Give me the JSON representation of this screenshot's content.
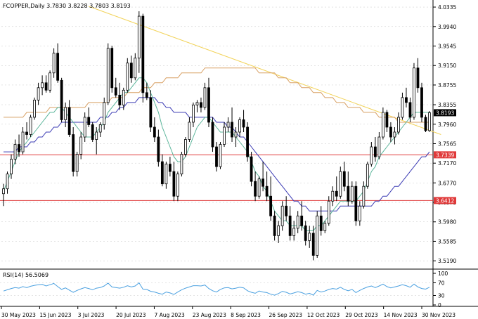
{
  "symbol_header": "FCOPPER,Daily  3.7830 3.8228 3.7803 3.8193",
  "rsi_label": "RSI(14) 56.5069",
  "colors": {
    "background": "#ffffff",
    "grid": "#c8c8c8",
    "candle": "#000000",
    "ma_fast": "#5ab59a",
    "ma_mid": "#3b3bb4",
    "ma_slow": "#d8a064",
    "trendline": "#f2d35a",
    "support": "#e03a3a",
    "rsi": "#4aa0e0"
  },
  "chart_data": {
    "type": "candlestick",
    "title": "FCOPPER,Daily",
    "ohlc_last": {
      "open": 3.783,
      "high": 3.8228,
      "low": 3.7803,
      "close": 3.8193
    },
    "price_axis": {
      "ticks": [
        "4.0335",
        "3.9940",
        "3.9545",
        "3.9150",
        "3.8755",
        "3.8355",
        "3.7960",
        "3.7565",
        "3.7170",
        "3.6770",
        "3.6375",
        "3.5980",
        "3.5585",
        "3.5190"
      ],
      "ylim": [
        3.505,
        4.045
      ]
    },
    "price_labels": [
      {
        "value": 3.8193,
        "text": "3.8193",
        "style": "current"
      },
      {
        "value": 3.7339,
        "text": "3.7339",
        "style": "support"
      },
      {
        "value": 3.6412,
        "text": "3.6412",
        "style": "support"
      }
    ],
    "horizontal_lines": [
      3.7339,
      3.6412
    ],
    "date_labels": [
      "30 May 2023",
      "15 Jun 2023",
      "3 Jul 2023",
      "20 Jul 2023",
      "7 Aug 2023",
      "23 Aug 2023",
      "8 Sep 2023",
      "26 Sep 2023",
      "12 Oct 2023",
      "29 Oct 2023",
      "14 Nov 2023",
      "30 Nov 2023"
    ],
    "trendline": {
      "start": [
        "2023-07-06",
        4.035
      ],
      "end": [
        "2023-12-06",
        3.775
      ]
    },
    "candles": [
      [
        3.655,
        3.675,
        3.63,
        3.665
      ],
      [
        3.665,
        3.7,
        3.655,
        3.695
      ],
      [
        3.695,
        3.735,
        3.685,
        3.725
      ],
      [
        3.725,
        3.765,
        3.715,
        3.755
      ],
      [
        3.755,
        3.775,
        3.73,
        3.74
      ],
      [
        3.74,
        3.79,
        3.735,
        3.78
      ],
      [
        3.78,
        3.8,
        3.765,
        3.775
      ],
      [
        3.775,
        3.815,
        3.77,
        3.81
      ],
      [
        3.81,
        3.85,
        3.805,
        3.845
      ],
      [
        3.845,
        3.88,
        3.835,
        3.87
      ],
      [
        3.87,
        3.895,
        3.855,
        3.88
      ],
      [
        3.88,
        3.895,
        3.86,
        3.865
      ],
      [
        3.865,
        3.905,
        3.86,
        3.9
      ],
      [
        3.9,
        3.95,
        3.89,
        3.94
      ],
      [
        3.94,
        3.96,
        3.88,
        3.885
      ],
      [
        3.885,
        3.89,
        3.8,
        3.805
      ],
      [
        3.805,
        3.84,
        3.79,
        3.83
      ],
      [
        3.83,
        3.845,
        3.77,
        3.775
      ],
      [
        3.775,
        3.79,
        3.69,
        3.7
      ],
      [
        3.7,
        3.74,
        3.69,
        3.735
      ],
      [
        3.735,
        3.78,
        3.725,
        3.77
      ],
      [
        3.77,
        3.82,
        3.76,
        3.81
      ],
      [
        3.81,
        3.83,
        3.79,
        3.795
      ],
      [
        3.795,
        3.8,
        3.76,
        3.765
      ],
      [
        3.765,
        3.79,
        3.735,
        3.78
      ],
      [
        3.78,
        3.8,
        3.77,
        3.795
      ],
      [
        3.795,
        3.85,
        3.785,
        3.84
      ],
      [
        3.84,
        3.96,
        3.835,
        3.95
      ],
      [
        3.95,
        3.955,
        3.86,
        3.87
      ],
      [
        3.87,
        3.89,
        3.85,
        3.855
      ],
      [
        3.855,
        3.88,
        3.825,
        3.835
      ],
      [
        3.835,
        3.87,
        3.825,
        3.865
      ],
      [
        3.865,
        3.93,
        3.86,
        3.92
      ],
      [
        3.92,
        3.935,
        3.88,
        3.89
      ],
      [
        3.89,
        3.94,
        3.885,
        3.93
      ],
      [
        3.93,
        4.025,
        3.9,
        4.015
      ],
      [
        4.015,
        4.02,
        3.84,
        3.86
      ],
      [
        3.86,
        3.88,
        3.845,
        3.85
      ],
      [
        3.85,
        3.865,
        3.78,
        3.79
      ],
      [
        3.79,
        3.81,
        3.76,
        3.77
      ],
      [
        3.77,
        3.785,
        3.71,
        3.72
      ],
      [
        3.72,
        3.735,
        3.67,
        3.675
      ],
      [
        3.675,
        3.72,
        3.665,
        3.715
      ],
      [
        3.715,
        3.73,
        3.69,
        3.7
      ],
      [
        3.7,
        3.72,
        3.64,
        3.65
      ],
      [
        3.65,
        3.7,
        3.64,
        3.695
      ],
      [
        3.695,
        3.74,
        3.69,
        3.735
      ],
      [
        3.735,
        3.77,
        3.73,
        3.765
      ],
      [
        3.765,
        3.81,
        3.76,
        3.8
      ],
      [
        3.8,
        3.84,
        3.79,
        3.835
      ],
      [
        3.835,
        3.845,
        3.82,
        3.84
      ],
      [
        3.84,
        3.85,
        3.82,
        3.83
      ],
      [
        3.83,
        3.88,
        3.825,
        3.87
      ],
      [
        3.87,
        3.89,
        3.79,
        3.8
      ],
      [
        3.8,
        3.81,
        3.74,
        3.75
      ],
      [
        3.75,
        3.76,
        3.7,
        3.71
      ],
      [
        3.71,
        3.76,
        3.705,
        3.755
      ],
      [
        3.755,
        3.8,
        3.75,
        3.79
      ],
      [
        3.79,
        3.81,
        3.78,
        3.8
      ],
      [
        3.8,
        3.83,
        3.76,
        3.77
      ],
      [
        3.77,
        3.79,
        3.75,
        3.78
      ],
      [
        3.78,
        3.81,
        3.77,
        3.805
      ],
      [
        3.805,
        3.825,
        3.78,
        3.79
      ],
      [
        3.79,
        3.8,
        3.72,
        3.73
      ],
      [
        3.73,
        3.74,
        3.67,
        3.68
      ],
      [
        3.68,
        3.7,
        3.64,
        3.65
      ],
      [
        3.65,
        3.69,
        3.645,
        3.685
      ],
      [
        3.685,
        3.72,
        3.66,
        3.67
      ],
      [
        3.67,
        3.7,
        3.64,
        3.65
      ],
      [
        3.65,
        3.69,
        3.6,
        3.61
      ],
      [
        3.61,
        3.62,
        3.56,
        3.57
      ],
      [
        3.57,
        3.6,
        3.555,
        3.59
      ],
      [
        3.59,
        3.64,
        3.58,
        3.63
      ],
      [
        3.63,
        3.65,
        3.6,
        3.61
      ],
      [
        3.61,
        3.63,
        3.56,
        3.57
      ],
      [
        3.57,
        3.6,
        3.56,
        3.585
      ],
      [
        3.585,
        3.62,
        3.575,
        3.61
      ],
      [
        3.61,
        3.64,
        3.58,
        3.59
      ],
      [
        3.59,
        3.6,
        3.55,
        3.56
      ],
      [
        3.56,
        3.59,
        3.545,
        3.575
      ],
      [
        3.575,
        3.59,
        3.52,
        3.53
      ],
      [
        3.53,
        3.62,
        3.525,
        3.61
      ],
      [
        3.61,
        3.63,
        3.57,
        3.58
      ],
      [
        3.58,
        3.6,
        3.575,
        3.595
      ],
      [
        3.595,
        3.65,
        3.59,
        3.64
      ],
      [
        3.64,
        3.67,
        3.63,
        3.66
      ],
      [
        3.66,
        3.69,
        3.64,
        3.65
      ],
      [
        3.65,
        3.71,
        3.645,
        3.7
      ],
      [
        3.7,
        3.72,
        3.66,
        3.67
      ],
      [
        3.67,
        3.7,
        3.63,
        3.64
      ],
      [
        3.64,
        3.68,
        3.635,
        3.67
      ],
      [
        3.67,
        3.68,
        3.59,
        3.6
      ],
      [
        3.6,
        3.64,
        3.59,
        3.63
      ],
      [
        3.63,
        3.68,
        3.625,
        3.67
      ],
      [
        3.67,
        3.72,
        3.665,
        3.715
      ],
      [
        3.715,
        3.76,
        3.71,
        3.75
      ],
      [
        3.75,
        3.77,
        3.72,
        3.73
      ],
      [
        3.73,
        3.78,
        3.725,
        3.77
      ],
      [
        3.77,
        3.83,
        3.765,
        3.82
      ],
      [
        3.82,
        3.825,
        3.78,
        3.79
      ],
      [
        3.79,
        3.8,
        3.76,
        3.77
      ],
      [
        3.77,
        3.79,
        3.755,
        3.78
      ],
      [
        3.78,
        3.82,
        3.775,
        3.81
      ],
      [
        3.81,
        3.86,
        3.805,
        3.85
      ],
      [
        3.85,
        3.87,
        3.83,
        3.84
      ],
      [
        3.84,
        3.85,
        3.8,
        3.81
      ],
      [
        3.81,
        3.92,
        3.805,
        3.91
      ],
      [
        3.91,
        3.93,
        3.86,
        3.87
      ],
      [
        3.87,
        3.88,
        3.8,
        3.81
      ],
      [
        3.81,
        3.815,
        3.78,
        3.783
      ],
      [
        3.783,
        3.8228,
        3.7803,
        3.8193
      ]
    ],
    "ma_fast": [
      3.66,
      3.68,
      3.7,
      3.72,
      3.74,
      3.75,
      3.76,
      3.77,
      3.78,
      3.79,
      3.8,
      3.81,
      3.82,
      3.82,
      3.83,
      3.83,
      3.82,
      3.81,
      3.8,
      3.79,
      3.78,
      3.77,
      3.77,
      3.77,
      3.78,
      3.79,
      3.8,
      3.82,
      3.83,
      3.84,
      3.85,
      3.86,
      3.86,
      3.87,
      3.88,
      3.89,
      3.89,
      3.88,
      3.86,
      3.84,
      3.82,
      3.79,
      3.77,
      3.75,
      3.73,
      3.72,
      3.72,
      3.73,
      3.75,
      3.77,
      3.79,
      3.8,
      3.81,
      3.81,
      3.8,
      3.79,
      3.78,
      3.78,
      3.78,
      3.78,
      3.77,
      3.76,
      3.75,
      3.74,
      3.72,
      3.7,
      3.69,
      3.67,
      3.66,
      3.64,
      3.62,
      3.61,
      3.6,
      3.6,
      3.59,
      3.59,
      3.59,
      3.59,
      3.58,
      3.58,
      3.58,
      3.59,
      3.59,
      3.6,
      3.61,
      3.62,
      3.63,
      3.64,
      3.64,
      3.64,
      3.64,
      3.64,
      3.65,
      3.66,
      3.68,
      3.7,
      3.71,
      3.73,
      3.74,
      3.75,
      3.76,
      3.77,
      3.78,
      3.79,
      3.8,
      3.81,
      3.82,
      3.82,
      3.82,
      3.82,
      3.82
    ],
    "ma_mid": [
      3.74,
      3.74,
      3.74,
      3.74,
      3.75,
      3.75,
      3.75,
      3.76,
      3.76,
      3.77,
      3.77,
      3.78,
      3.78,
      3.79,
      3.79,
      3.8,
      3.8,
      3.8,
      3.8,
      3.8,
      3.8,
      3.8,
      3.8,
      3.8,
      3.8,
      3.81,
      3.81,
      3.81,
      3.82,
      3.82,
      3.83,
      3.83,
      3.84,
      3.84,
      3.84,
      3.85,
      3.85,
      3.85,
      3.85,
      3.85,
      3.84,
      3.84,
      3.83,
      3.83,
      3.82,
      3.82,
      3.82,
      3.82,
      3.81,
      3.81,
      3.81,
      3.81,
      3.81,
      3.81,
      3.81,
      3.8,
      3.8,
      3.8,
      3.79,
      3.79,
      3.78,
      3.77,
      3.77,
      3.76,
      3.75,
      3.74,
      3.73,
      3.72,
      3.71,
      3.7,
      3.69,
      3.68,
      3.67,
      3.66,
      3.65,
      3.64,
      3.64,
      3.63,
      3.63,
      3.62,
      3.62,
      3.62,
      3.62,
      3.62,
      3.62,
      3.62,
      3.62,
      3.63,
      3.63,
      3.63,
      3.63,
      3.63,
      3.63,
      3.63,
      3.63,
      3.63,
      3.64,
      3.64,
      3.65,
      3.65,
      3.66,
      3.67,
      3.67,
      3.68,
      3.69,
      3.7,
      3.71,
      3.72,
      3.73,
      3.73,
      3.74
    ],
    "ma_slow": [
      3.81,
      3.81,
      3.81,
      3.81,
      3.81,
      3.81,
      3.82,
      3.82,
      3.82,
      3.82,
      3.82,
      3.82,
      3.83,
      3.83,
      3.83,
      3.83,
      3.83,
      3.83,
      3.83,
      3.83,
      3.83,
      3.83,
      3.84,
      3.84,
      3.84,
      3.84,
      3.84,
      3.84,
      3.85,
      3.85,
      3.85,
      3.85,
      3.86,
      3.86,
      3.86,
      3.86,
      3.87,
      3.87,
      3.87,
      3.88,
      3.88,
      3.88,
      3.89,
      3.89,
      3.89,
      3.89,
      3.9,
      3.9,
      3.9,
      3.9,
      3.9,
      3.9,
      3.91,
      3.91,
      3.91,
      3.91,
      3.91,
      3.91,
      3.91,
      3.91,
      3.91,
      3.91,
      3.91,
      3.91,
      3.91,
      3.91,
      3.9,
      3.9,
      3.9,
      3.9,
      3.9,
      3.89,
      3.89,
      3.89,
      3.88,
      3.88,
      3.88,
      3.87,
      3.87,
      3.87,
      3.86,
      3.86,
      3.86,
      3.85,
      3.85,
      3.85,
      3.84,
      3.84,
      3.84,
      3.83,
      3.83,
      3.83,
      3.83,
      3.82,
      3.82,
      3.82,
      3.82,
      3.81,
      3.81,
      3.81,
      3.81,
      3.81,
      3.8,
      3.8,
      3.8,
      3.8,
      3.8,
      3.8,
      3.8,
      3.8,
      3.8
    ],
    "rsi": {
      "name": "RSI(14)",
      "last": 56.5069,
      "ticks": [
        "100",
        "70",
        "30",
        "0"
      ],
      "ylim": [
        0,
        100
      ],
      "values": [
        44,
        48,
        52,
        55,
        53,
        58,
        55,
        59,
        62,
        64,
        65,
        60,
        64,
        68,
        58,
        49,
        54,
        47,
        40,
        46,
        51,
        55,
        52,
        48,
        53,
        55,
        60,
        69,
        57,
        55,
        53,
        56,
        61,
        57,
        60,
        70,
        50,
        49,
        43,
        41,
        37,
        34,
        41,
        38,
        33,
        41,
        48,
        53,
        57,
        61,
        61,
        60,
        63,
        52,
        45,
        41,
        49,
        54,
        55,
        51,
        53,
        56,
        54,
        45,
        40,
        37,
        44,
        41,
        39,
        34,
        31,
        36,
        43,
        40,
        35,
        38,
        42,
        39,
        34,
        37,
        31,
        46,
        41,
        44,
        49,
        52,
        50,
        56,
        49,
        45,
        49,
        39,
        46,
        52,
        57,
        60,
        55,
        60,
        66,
        58,
        54,
        57,
        60,
        64,
        61,
        56,
        66,
        57,
        52,
        50,
        56
      ]
    }
  }
}
